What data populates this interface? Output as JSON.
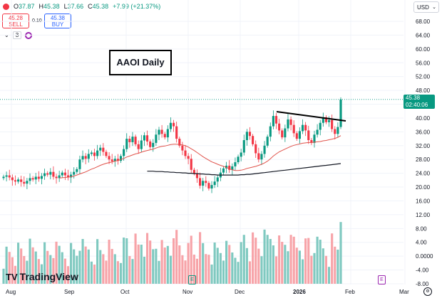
{
  "header": {
    "ohlc": {
      "o_label": "O",
      "o": "37.87",
      "h_label": "H",
      "h": "45.38",
      "l_label": "L",
      "l": "37.66",
      "c_label": "C",
      "c": "45.38",
      "change": "+7.99 (+21.37%)"
    },
    "sell": {
      "price": "45.28",
      "label": "SELL"
    },
    "buy": {
      "price": "45.38",
      "label": "BUY"
    },
    "spread": "0.10",
    "indicator_count": "3"
  },
  "annotation_title": "AAOI Daily",
  "currency": "USD",
  "price_tag": {
    "price": "45.38",
    "countdown": "02:40:06"
  },
  "logo": {
    "text": "TradingView",
    "mark": "TV"
  },
  "colors": {
    "up": "#089981",
    "down": "#f23645",
    "ma_fast": "#e0524a",
    "ma_slow": "#131722",
    "vol_up": "#7fc9c0",
    "vol_down": "#f7a3a8"
  },
  "chart_data": {
    "type": "candlestick",
    "title": "AAOI Daily",
    "x_labels": [
      "Aug",
      "Sep",
      "Oct",
      "Nov",
      "Dec",
      "2026",
      "Feb",
      "Mar"
    ],
    "y_ticks": [
      "68.00",
      "64.00",
      "60.00",
      "56.00",
      "52.00",
      "48.00",
      "44.00",
      "40.00",
      "36.00",
      "32.00",
      "28.00",
      "24.00",
      "20.00",
      "16.00",
      "12.00",
      "8.00",
      "4.00",
      "0.0000",
      "-4.00",
      "-8.00"
    ],
    "ylim": [
      -8,
      70
    ],
    "last_close": 45.38,
    "closes": [
      23.0,
      23.4,
      22.8,
      22.0,
      21.6,
      22.2,
      21.5,
      21.0,
      21.8,
      22.6,
      22.2,
      23.0,
      22.4,
      23.2,
      24.0,
      23.6,
      24.4,
      23.0,
      22.6,
      23.4,
      24.2,
      23.4,
      22.8,
      23.6,
      24.4,
      25.2,
      28.0,
      29.0,
      28.2,
      29.6,
      30.0,
      29.0,
      30.6,
      31.4,
      30.2,
      29.0,
      28.0,
      27.5,
      28.2,
      27.6,
      29.0,
      31.0,
      34.0,
      33.0,
      34.6,
      32.4,
      31.0,
      33.5,
      35.0,
      33.2,
      31.6,
      32.8,
      35.2,
      36.6,
      35.4,
      34.4,
      36.8,
      38.6,
      37.6,
      34.0,
      32.0,
      30.6,
      29.0,
      28.2,
      25.0,
      24.0,
      22.6,
      20.4,
      21.8,
      21.2,
      19.6,
      20.6,
      21.6,
      22.8,
      24.2,
      25.4,
      26.2,
      25.0,
      26.0,
      27.2,
      28.8,
      30.0,
      33.6,
      36.0,
      34.8,
      32.4,
      29.8,
      28.0,
      29.6,
      32.0,
      34.6,
      37.6,
      40.6,
      38.4,
      36.4,
      34.4,
      37.0,
      39.6,
      38.0,
      35.6,
      34.0,
      36.2,
      38.0,
      36.4,
      33.6,
      32.8,
      35.2,
      36.6,
      38.6,
      40.2,
      38.8,
      39.4,
      36.8,
      35.4,
      37.4,
      45.38
    ],
    "ma_fast": [
      null,
      null,
      null,
      null,
      null,
      null,
      null,
      null,
      null,
      null,
      null,
      null,
      null,
      null,
      null,
      null,
      null,
      null,
      null,
      22.6,
      22.7,
      22.8,
      22.9,
      23.0,
      23.2,
      23.5,
      23.8,
      24.1,
      24.4,
      24.8,
      25.2,
      25.5,
      25.9,
      26.3,
      26.6,
      26.9,
      27.1,
      27.3,
      27.5,
      27.7,
      28.0,
      28.3,
      28.7,
      29.0,
      29.3,
      29.6,
      29.8,
      30.1,
      30.4,
      30.6,
      30.8,
      31.0,
      31.3,
      31.6,
      31.8,
      31.9,
      32.1,
      32.3,
      32.4,
      32.4,
      32.3,
      32.2,
      32.0,
      31.6,
      31.1,
      30.6,
      30.0,
      29.4,
      28.8,
      28.3,
      27.8,
      27.3,
      27.0,
      26.6,
      26.3,
      26.0,
      25.7,
      25.3,
      25.0,
      24.8,
      24.8,
      24.9,
      25.1,
      25.4,
      25.6,
      25.8,
      26.0,
      26.3,
      26.6,
      27.0,
      27.5,
      28.2,
      29.0,
      29.6,
      30.2,
      30.6,
      31.0,
      31.4,
      31.8,
      32.1,
      32.3,
      32.5,
      32.7,
      32.8,
      32.9,
      32.9,
      33.0,
      33.1,
      33.2,
      33.4,
      33.5,
      33.7,
      33.9,
      34.1,
      34.4,
      34.9
    ],
    "ma_slow": [
      null,
      null,
      null,
      null,
      null,
      null,
      null,
      null,
      null,
      null,
      null,
      null,
      null,
      null,
      null,
      null,
      null,
      null,
      null,
      null,
      null,
      null,
      null,
      null,
      null,
      null,
      null,
      null,
      null,
      null,
      null,
      null,
      null,
      null,
      null,
      null,
      null,
      null,
      null,
      null,
      null,
      null,
      null,
      null,
      null,
      null,
      null,
      null,
      null,
      24.6,
      24.6,
      24.6,
      24.5,
      24.5,
      24.5,
      24.4,
      24.4,
      24.3,
      24.3,
      24.2,
      24.2,
      24.1,
      24.1,
      24.0,
      24.0,
      23.9,
      23.9,
      23.8,
      23.8,
      23.7,
      23.7,
      23.6,
      23.6,
      23.5,
      23.5,
      23.5,
      23.5,
      23.5,
      23.5,
      23.5,
      23.5,
      23.6,
      23.6,
      23.7,
      23.7,
      23.8,
      23.9,
      24.0,
      24.1,
      24.2,
      24.3,
      24.4,
      24.5,
      24.6,
      24.7,
      24.8,
      24.9,
      25.0,
      25.1,
      25.2,
      25.3,
      25.4,
      25.5,
      25.6,
      25.7,
      25.8,
      25.9,
      26.0,
      26.1,
      26.2,
      26.3,
      26.4,
      26.5,
      26.6,
      26.7,
      26.8
    ]
  }
}
